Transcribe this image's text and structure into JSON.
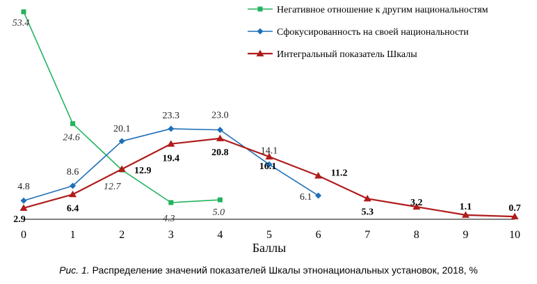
{
  "chart_data": {
    "type": "line",
    "x": [
      0,
      1,
      2,
      3,
      4,
      5,
      6,
      7,
      8,
      9,
      10
    ],
    "xlabel": "Баллы",
    "xlim": [
      0,
      10
    ],
    "ylim": [
      0,
      55
    ],
    "grid": false,
    "legend_position": "top-right",
    "series": [
      {
        "name": "Негативное отношение к другим национальностям",
        "color": "#22b35e",
        "marker": "square",
        "x": [
          0,
          1,
          2,
          3,
          4
        ],
        "values": [
          53.4,
          24.6,
          12.7,
          4.3,
          5.0
        ],
        "labels": [
          "53.4",
          "24.6",
          "12.7",
          "4.3",
          "5.0"
        ]
      },
      {
        "name": "Сфокусированность на своей национальности",
        "color": "#1e6fb8",
        "marker": "diamond",
        "x": [
          0,
          1,
          2,
          3,
          4,
          5,
          6
        ],
        "values": [
          4.8,
          8.6,
          20.1,
          23.3,
          23.0,
          14.1,
          6.1
        ],
        "labels": [
          "4.8",
          "8.6",
          "20.1",
          "23.3",
          "23.0",
          "14.1",
          "6.1"
        ]
      },
      {
        "name": "Интегральный показатель Шкалы",
        "color": "#b01c1c",
        "marker": "triangle",
        "x": [
          0,
          1,
          2,
          3,
          4,
          5,
          6,
          7,
          8,
          9,
          10
        ],
        "values": [
          2.9,
          6.4,
          12.9,
          19.4,
          20.8,
          16.1,
          11.2,
          5.3,
          3.2,
          1.1,
          0.7
        ],
        "labels": [
          "2.9",
          "6.4",
          "12.9",
          "19.4",
          "20.8",
          "16.1",
          "11.2",
          "5.3",
          "3.2",
          "1.1",
          "0.7"
        ]
      }
    ]
  },
  "caption": {
    "label": "Рис. 1.",
    "text": "Распределение значений показателей Шкалы этнонациональных установок, 2018, %"
  }
}
